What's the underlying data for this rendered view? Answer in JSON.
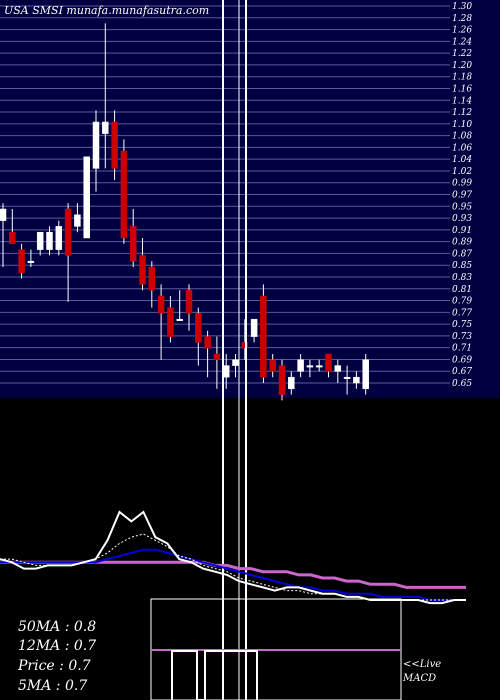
{
  "header": {
    "title": "USA SMSI munafa.munafasutra.com"
  },
  "colors": {
    "background": "#000000",
    "price_panel": "#000040",
    "grid_line": "#5a5aa0",
    "bull": "#ffffff",
    "bear": "#cc0000",
    "ma_long": "#cc66cc",
    "ma_mid": "#0000dd",
    "price_line": "#ffffff",
    "ma_short": "#ffffff"
  },
  "stats": {
    "ma50": "50MA : 0.8",
    "ma12": "12MA : 0.7",
    "price": "Price   : 0.7",
    "ma5": "5MA : 0.7"
  },
  "macd": {
    "label_top": "<<Live",
    "label_bottom": "MACD"
  },
  "chart_data": {
    "type": "candlestick",
    "title": "USA SMSI munafa.munafasutra.com",
    "y_tick_labels": [
      "0.65",
      "0.67",
      "0.69",
      "0.71",
      "0.73",
      "0.75",
      "0.77",
      "0.79",
      "0.81",
      "0.83",
      "0.85",
      "0.87",
      "0.89",
      "0.91",
      "0.93",
      "0.95",
      "0.97",
      "0.99",
      "1.02",
      "1.04",
      "1.06",
      "1.08",
      "1.10",
      "1.12",
      "1.14",
      "1.16",
      "1.18",
      "1.20",
      "1.22",
      "1.24",
      "1.26",
      "1.28",
      "1.30"
    ],
    "ylim": [
      0.65,
      1.3
    ],
    "candles": [
      {
        "o": 0.93,
        "h": 0.96,
        "l": 0.85,
        "c": 0.95
      },
      {
        "o": 0.91,
        "h": 0.95,
        "l": 0.89,
        "c": 0.89
      },
      {
        "o": 0.88,
        "h": 0.89,
        "l": 0.83,
        "c": 0.84
      },
      {
        "o": 0.86,
        "h": 0.88,
        "l": 0.85,
        "c": 0.86
      },
      {
        "o": 0.88,
        "h": 0.91,
        "l": 0.87,
        "c": 0.91
      },
      {
        "o": 0.88,
        "h": 0.92,
        "l": 0.87,
        "c": 0.91
      },
      {
        "o": 0.88,
        "h": 0.93,
        "l": 0.87,
        "c": 0.92
      },
      {
        "o": 0.95,
        "h": 0.96,
        "l": 0.79,
        "c": 0.87
      },
      {
        "o": 0.92,
        "h": 0.96,
        "l": 0.91,
        "c": 0.94
      },
      {
        "o": 0.9,
        "h": 1.04,
        "l": 0.9,
        "c": 1.04
      },
      {
        "o": 1.02,
        "h": 1.12,
        "l": 0.98,
        "c": 1.1
      },
      {
        "o": 1.08,
        "h": 1.27,
        "l": 1.02,
        "c": 1.1
      },
      {
        "o": 1.1,
        "h": 1.12,
        "l": 1.0,
        "c": 1.02
      },
      {
        "o": 1.05,
        "h": 1.07,
        "l": 0.89,
        "c": 0.9
      },
      {
        "o": 0.92,
        "h": 0.95,
        "l": 0.85,
        "c": 0.86
      },
      {
        "o": 0.87,
        "h": 0.9,
        "l": 0.81,
        "c": 0.82
      },
      {
        "o": 0.85,
        "h": 0.86,
        "l": 0.78,
        "c": 0.81
      },
      {
        "o": 0.8,
        "h": 0.82,
        "l": 0.69,
        "c": 0.77
      },
      {
        "o": 0.78,
        "h": 0.8,
        "l": 0.72,
        "c": 0.73
      },
      {
        "o": 0.76,
        "h": 0.81,
        "l": 0.76,
        "c": 0.76
      },
      {
        "o": 0.81,
        "h": 0.82,
        "l": 0.74,
        "c": 0.77
      },
      {
        "o": 0.77,
        "h": 0.78,
        "l": 0.68,
        "c": 0.72
      },
      {
        "o": 0.73,
        "h": 0.74,
        "l": 0.66,
        "c": 0.71
      },
      {
        "o": 0.7,
        "h": 0.73,
        "l": 0.64,
        "c": 0.69
      },
      {
        "o": 0.66,
        "h": 0.7,
        "l": 0.64,
        "c": 0.68
      },
      {
        "o": 0.68,
        "h": 0.7,
        "l": 0.66,
        "c": 0.69
      },
      {
        "o": 0.72,
        "h": 0.76,
        "l": 0.69,
        "c": 0.71
      },
      {
        "o": 0.73,
        "h": 0.76,
        "l": 0.72,
        "c": 0.76
      },
      {
        "o": 0.8,
        "h": 0.82,
        "l": 0.65,
        "c": 0.66
      },
      {
        "o": 0.69,
        "h": 0.7,
        "l": 0.66,
        "c": 0.67
      },
      {
        "o": 0.68,
        "h": 0.69,
        "l": 0.62,
        "c": 0.63
      },
      {
        "o": 0.64,
        "h": 0.67,
        "l": 0.63,
        "c": 0.66
      },
      {
        "o": 0.67,
        "h": 0.7,
        "l": 0.66,
        "c": 0.69
      },
      {
        "o": 0.68,
        "h": 0.69,
        "l": 0.66,
        "c": 0.68
      },
      {
        "o": 0.68,
        "h": 0.69,
        "l": 0.67,
        "c": 0.68
      },
      {
        "o": 0.7,
        "h": 0.7,
        "l": 0.66,
        "c": 0.67
      },
      {
        "o": 0.67,
        "h": 0.69,
        "l": 0.65,
        "c": 0.68
      },
      {
        "o": 0.66,
        "h": 0.68,
        "l": 0.63,
        "c": 0.66
      },
      {
        "o": 0.65,
        "h": 0.67,
        "l": 0.64,
        "c": 0.66
      },
      {
        "o": 0.64,
        "h": 0.7,
        "l": 0.63,
        "c": 0.69
      }
    ],
    "indicator_lines": {
      "price": [
        0.73,
        0.72,
        0.7,
        0.7,
        0.71,
        0.71,
        0.71,
        0.72,
        0.73,
        0.79,
        0.88,
        0.85,
        0.88,
        0.8,
        0.78,
        0.73,
        0.72,
        0.7,
        0.69,
        0.68,
        0.66,
        0.65,
        0.64,
        0.63,
        0.64,
        0.64,
        0.63,
        0.62,
        0.62,
        0.61,
        0.61,
        0.6,
        0.6,
        0.6,
        0.6,
        0.6,
        0.59,
        0.59,
        0.6,
        0.6
      ],
      "ma5": [
        0.73,
        0.73,
        0.72,
        0.71,
        0.71,
        0.71,
        0.71,
        0.72,
        0.73,
        0.75,
        0.78,
        0.8,
        0.81,
        0.79,
        0.77,
        0.74,
        0.73,
        0.71,
        0.7,
        0.69,
        0.67,
        0.66,
        0.65,
        0.64,
        0.63,
        0.63,
        0.62,
        0.62,
        0.62,
        0.61,
        0.61,
        0.6,
        0.6,
        0.6,
        0.6,
        0.6,
        0.6,
        0.6,
        0.6,
        0.6
      ],
      "ma12": [
        0.72,
        0.72,
        0.72,
        0.72,
        0.72,
        0.72,
        0.72,
        0.72,
        0.72,
        0.73,
        0.74,
        0.75,
        0.76,
        0.76,
        0.75,
        0.74,
        0.73,
        0.72,
        0.71,
        0.7,
        0.69,
        0.68,
        0.67,
        0.66,
        0.65,
        0.64,
        0.64,
        0.63,
        0.63,
        0.62,
        0.62,
        0.62,
        0.61,
        0.61,
        0.61,
        0.61,
        0.6,
        0.6,
        0.6,
        0.6
      ],
      "ma50": [
        0.72,
        0.72,
        0.72,
        0.72,
        0.72,
        0.72,
        0.72,
        0.72,
        0.72,
        0.72,
        0.72,
        0.72,
        0.72,
        0.72,
        0.72,
        0.72,
        0.72,
        0.72,
        0.71,
        0.71,
        0.7,
        0.7,
        0.69,
        0.69,
        0.69,
        0.68,
        0.68,
        0.67,
        0.67,
        0.66,
        0.66,
        0.65,
        0.65,
        0.65,
        0.64,
        0.64,
        0.64,
        0.64,
        0.64,
        0.64
      ]
    }
  }
}
